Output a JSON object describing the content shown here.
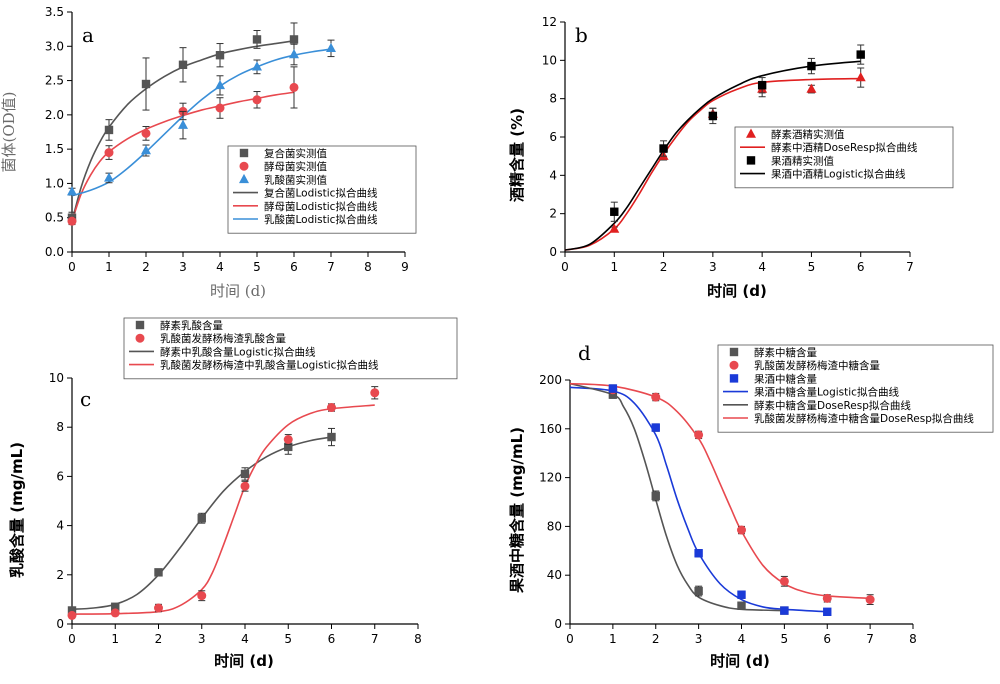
{
  "chart_data": [
    {
      "id": "a",
      "panel_label": "a",
      "type": "scatter",
      "xlabel": "时间 (d)",
      "ylabel": "菌体(OD值)",
      "xlim": [
        0,
        9
      ],
      "ylim": [
        0,
        3.5
      ],
      "xticks": [
        0,
        1,
        2,
        3,
        4,
        5,
        6,
        7,
        8,
        9
      ],
      "yticks": [
        0.0,
        0.5,
        1.0,
        1.5,
        2.0,
        2.5,
        3.0,
        3.5
      ],
      "ytick_labels": [
        "0.0",
        "0.5",
        "1.0",
        "1.5",
        "2.0",
        "2.5",
        "3.0",
        "3.5"
      ],
      "legend_position": "center-right",
      "series": [
        {
          "name": "复合菌实测值",
          "kind": "points",
          "marker": "square",
          "color": "#555555",
          "x": [
            0,
            1,
            2,
            3,
            4,
            5,
            6
          ],
          "y": [
            0.5,
            1.78,
            2.45,
            2.73,
            2.87,
            3.1,
            3.1
          ],
          "err": [
            0.08,
            0.15,
            0.38,
            0.25,
            0.17,
            0.13,
            0.24
          ]
        },
        {
          "name": "酵母菌实测值",
          "kind": "points",
          "marker": "circle",
          "color": "#e8494f",
          "x": [
            0,
            1,
            2,
            3,
            4,
            5,
            6
          ],
          "y": [
            0.45,
            1.45,
            1.73,
            2.05,
            2.1,
            2.22,
            2.4
          ],
          "err": [
            0.05,
            0.1,
            0.1,
            0.12,
            0.15,
            0.12,
            0.3
          ]
        },
        {
          "name": "乳酸菌实测值",
          "kind": "points",
          "marker": "triangle",
          "color": "#3a8fd8",
          "x": [
            0,
            1,
            2,
            3,
            4,
            5,
            6,
            7
          ],
          "y": [
            0.88,
            1.08,
            1.48,
            1.85,
            2.43,
            2.7,
            2.88,
            2.97
          ],
          "err": [
            0.05,
            0.07,
            0.08,
            0.2,
            0.14,
            0.1,
            0.15,
            0.12
          ]
        },
        {
          "name": "复合菌Lodistic拟合曲线",
          "kind": "line",
          "color": "#555555",
          "x": [
            0,
            0.25,
            0.5,
            0.75,
            1,
            1.5,
            2,
            2.5,
            3,
            3.5,
            4,
            4.5,
            5,
            5.5,
            6
          ],
          "y": [
            0.45,
            0.95,
            1.32,
            1.6,
            1.82,
            2.15,
            2.38,
            2.56,
            2.7,
            2.8,
            2.89,
            2.95,
            3.0,
            3.04,
            3.08
          ]
        },
        {
          "name": "酵母菌Lodistic拟合曲线",
          "kind": "line",
          "color": "#e8494f",
          "x": [
            0,
            0.25,
            0.5,
            0.75,
            1,
            1.5,
            2,
            2.5,
            3,
            3.5,
            4,
            4.5,
            5,
            5.5,
            6
          ],
          "y": [
            0.45,
            0.85,
            1.12,
            1.32,
            1.46,
            1.65,
            1.79,
            1.9,
            1.99,
            2.07,
            2.13,
            2.19,
            2.24,
            2.29,
            2.33
          ]
        },
        {
          "name": "乳酸菌Lodistic拟合曲线",
          "kind": "line",
          "color": "#3a8fd8",
          "x": [
            0,
            0.5,
            1,
            1.5,
            2,
            2.5,
            3,
            3.5,
            4,
            4.5,
            5,
            5.5,
            6,
            6.5,
            7
          ],
          "y": [
            0.82,
            0.9,
            1.02,
            1.22,
            1.46,
            1.72,
            1.98,
            2.22,
            2.42,
            2.58,
            2.7,
            2.8,
            2.87,
            2.92,
            2.96
          ]
        }
      ]
    },
    {
      "id": "b",
      "panel_label": "b",
      "type": "scatter",
      "xlabel": "时间 (d)",
      "ylabel": "酒精含量 (%)",
      "xlim": [
        0,
        7
      ],
      "ylim": [
        0,
        12
      ],
      "xticks": [
        0,
        1,
        2,
        3,
        4,
        5,
        6,
        7
      ],
      "yticks": [
        0,
        2,
        4,
        6,
        8,
        10,
        12
      ],
      "ytick_labels": [
        "0",
        "2",
        "4",
        "6",
        "8",
        "10",
        "12"
      ],
      "legend_position": "bottom-right",
      "series": [
        {
          "name": "酵素酒精实测值",
          "kind": "points",
          "marker": "triangle",
          "color": "#e02020",
          "x": [
            1,
            2,
            3,
            4,
            5,
            6
          ],
          "y": [
            1.2,
            5.0,
            7.2,
            8.5,
            8.5,
            9.1
          ],
          "err": [
            0.1,
            0.2,
            0.3,
            0.4,
            0.2,
            0.5
          ]
        },
        {
          "name": "酵素中酒精DoseResp拟合曲线",
          "kind": "line",
          "color": "#e02020",
          "x": [
            0,
            0.5,
            1,
            1.25,
            1.5,
            1.75,
            2,
            2.25,
            2.5,
            2.75,
            3,
            3.5,
            4,
            5,
            6
          ],
          "y": [
            0.1,
            0.35,
            1.2,
            2.0,
            3.0,
            4.1,
            5.1,
            6.0,
            6.8,
            7.4,
            7.9,
            8.5,
            8.85,
            9.0,
            9.05
          ]
        },
        {
          "name": "果酒精实测值",
          "kind": "points",
          "marker": "square",
          "color": "#000000",
          "x": [
            1,
            2,
            3,
            4,
            5,
            6
          ],
          "y": [
            2.1,
            5.4,
            7.1,
            8.7,
            9.7,
            10.3
          ],
          "err": [
            0.5,
            0.4,
            0.4,
            0.4,
            0.4,
            0.5
          ]
        },
        {
          "name": "果酒中酒精Logistic拟合曲线",
          "kind": "line",
          "color": "#000000",
          "x": [
            0,
            0.5,
            1,
            1.25,
            1.5,
            1.75,
            2,
            2.25,
            2.5,
            2.75,
            3,
            3.5,
            4,
            5,
            6
          ],
          "y": [
            0.1,
            0.4,
            1.5,
            2.3,
            3.3,
            4.3,
            5.3,
            6.2,
            6.9,
            7.5,
            8.0,
            8.7,
            9.2,
            9.7,
            9.95
          ]
        }
      ]
    },
    {
      "id": "c",
      "panel_label": "c",
      "type": "scatter",
      "xlabel": "时间 (d)",
      "ylabel": "乳酸含量 (mg/mL)",
      "xlim": [
        0,
        8
      ],
      "ylim": [
        0,
        10
      ],
      "xticks": [
        0,
        1,
        2,
        3,
        4,
        5,
        6,
        7,
        8
      ],
      "yticks": [
        0,
        2,
        4,
        6,
        8,
        10
      ],
      "ytick_labels": [
        "0",
        "2",
        "4",
        "6",
        "8",
        "10"
      ],
      "legend_position": "top, above plot",
      "series": [
        {
          "name": "酵素乳酸含量",
          "kind": "points",
          "marker": "square",
          "color": "#555555",
          "x": [
            0,
            1,
            2,
            3,
            4,
            5,
            6
          ],
          "y": [
            0.55,
            0.7,
            2.1,
            4.3,
            6.1,
            7.2,
            7.6
          ],
          "err": [
            0.05,
            0.05,
            0.1,
            0.2,
            0.25,
            0.3,
            0.35
          ]
        },
        {
          "name": "乳酸菌发酵杨梅渣乳酸含量",
          "kind": "points",
          "marker": "circle",
          "color": "#e8494f",
          "x": [
            0,
            1,
            2,
            3,
            4,
            5,
            6,
            7
          ],
          "y": [
            0.35,
            0.45,
            0.65,
            1.15,
            5.6,
            7.5,
            8.8,
            9.4
          ],
          "err": [
            0.05,
            0.05,
            0.15,
            0.2,
            0.2,
            0.2,
            0.15,
            0.25
          ]
        },
        {
          "name": "酵素中乳酸含量Logistic拟合曲线",
          "kind": "line",
          "color": "#555555",
          "x": [
            0,
            0.5,
            1,
            1.5,
            2,
            2.5,
            3,
            3.5,
            4,
            4.5,
            5,
            5.5,
            6
          ],
          "y": [
            0.6,
            0.65,
            0.8,
            1.2,
            2.0,
            3.1,
            4.3,
            5.4,
            6.2,
            6.8,
            7.2,
            7.45,
            7.6
          ]
        },
        {
          "name": "乳酸菌发酵杨梅渣中乳酸含量Logistic拟合曲线",
          "kind": "line",
          "color": "#e8494f",
          "x": [
            0,
            1,
            2,
            2.5,
            3,
            3.25,
            3.5,
            3.75,
            4,
            4.25,
            4.5,
            5,
            5.5,
            6,
            7
          ],
          "y": [
            0.4,
            0.42,
            0.5,
            0.75,
            1.4,
            2.1,
            3.2,
            4.4,
            5.6,
            6.5,
            7.2,
            8.1,
            8.55,
            8.75,
            8.9
          ]
        }
      ]
    },
    {
      "id": "d",
      "panel_label": "d",
      "type": "scatter",
      "xlabel": "时间 (d)",
      "ylabel": "果酒中糖含量 (mg/mL)",
      "xlim": [
        0,
        8
      ],
      "ylim": [
        0,
        200
      ],
      "xticks": [
        0,
        1,
        2,
        3,
        4,
        5,
        6,
        7,
        8
      ],
      "yticks": [
        0,
        40,
        80,
        120,
        160,
        200
      ],
      "ytick_labels": [
        "0",
        "40",
        "80",
        "120",
        "160",
        "200"
      ],
      "legend_position": "top-right, above plot",
      "series": [
        {
          "name": "酵素中糖含量",
          "kind": "points",
          "marker": "square",
          "color": "#555555",
          "x": [
            1,
            2,
            3,
            4,
            5
          ],
          "y": [
            188,
            105,
            27,
            15,
            11
          ],
          "err": [
            3,
            4,
            4,
            3,
            2
          ]
        },
        {
          "name": "乳酸菌发酵杨梅渣中糖含量",
          "kind": "points",
          "marker": "circle",
          "color": "#e8494f",
          "x": [
            1,
            2,
            3,
            4,
            5,
            6,
            7
          ],
          "y": [
            192,
            186,
            155,
            77,
            35,
            21,
            20
          ],
          "err": [
            3,
            3,
            3,
            3,
            4,
            3,
            4
          ]
        },
        {
          "name": "果酒中糖含量",
          "kind": "points",
          "marker": "square",
          "color": "#1a3ad8",
          "x": [
            1,
            2,
            3,
            4,
            5,
            6
          ],
          "y": [
            193,
            161,
            58,
            24,
            11,
            10
          ],
          "err": [
            3,
            3,
            3,
            3,
            2,
            2
          ]
        },
        {
          "name": "果酒中糖含量Logistic拟合曲线",
          "kind": "line",
          "color": "#1a3ad8",
          "x": [
            0,
            1,
            1.5,
            2,
            2.25,
            2.5,
            2.75,
            3,
            3.5,
            4,
            4.5,
            5,
            6
          ],
          "y": [
            194,
            191,
            181,
            155,
            130,
            102,
            78,
            58,
            33,
            20,
            14,
            12,
            10
          ]
        },
        {
          "name": "酵素中糖含量DoseResp拟合曲线",
          "kind": "line",
          "color": "#555555",
          "x": [
            0,
            1,
            1.25,
            1.5,
            1.75,
            2,
            2.25,
            2.5,
            2.75,
            3,
            3.5,
            4,
            5
          ],
          "y": [
            197,
            188,
            178,
            160,
            133,
            102,
            72,
            48,
            32,
            22,
            15,
            12,
            11
          ]
        },
        {
          "name": "乳酸菌发酵杨梅渣中糖含量DoseResp拟合曲线",
          "kind": "line",
          "color": "#e8494f",
          "x": [
            0,
            1,
            2,
            2.5,
            3,
            3.25,
            3.5,
            3.75,
            4,
            4.5,
            5,
            5.5,
            6,
            7
          ],
          "y": [
            197,
            195,
            186,
            174,
            152,
            135,
            115,
            95,
            76,
            48,
            33,
            26,
            23,
            21
          ]
        }
      ]
    }
  ]
}
